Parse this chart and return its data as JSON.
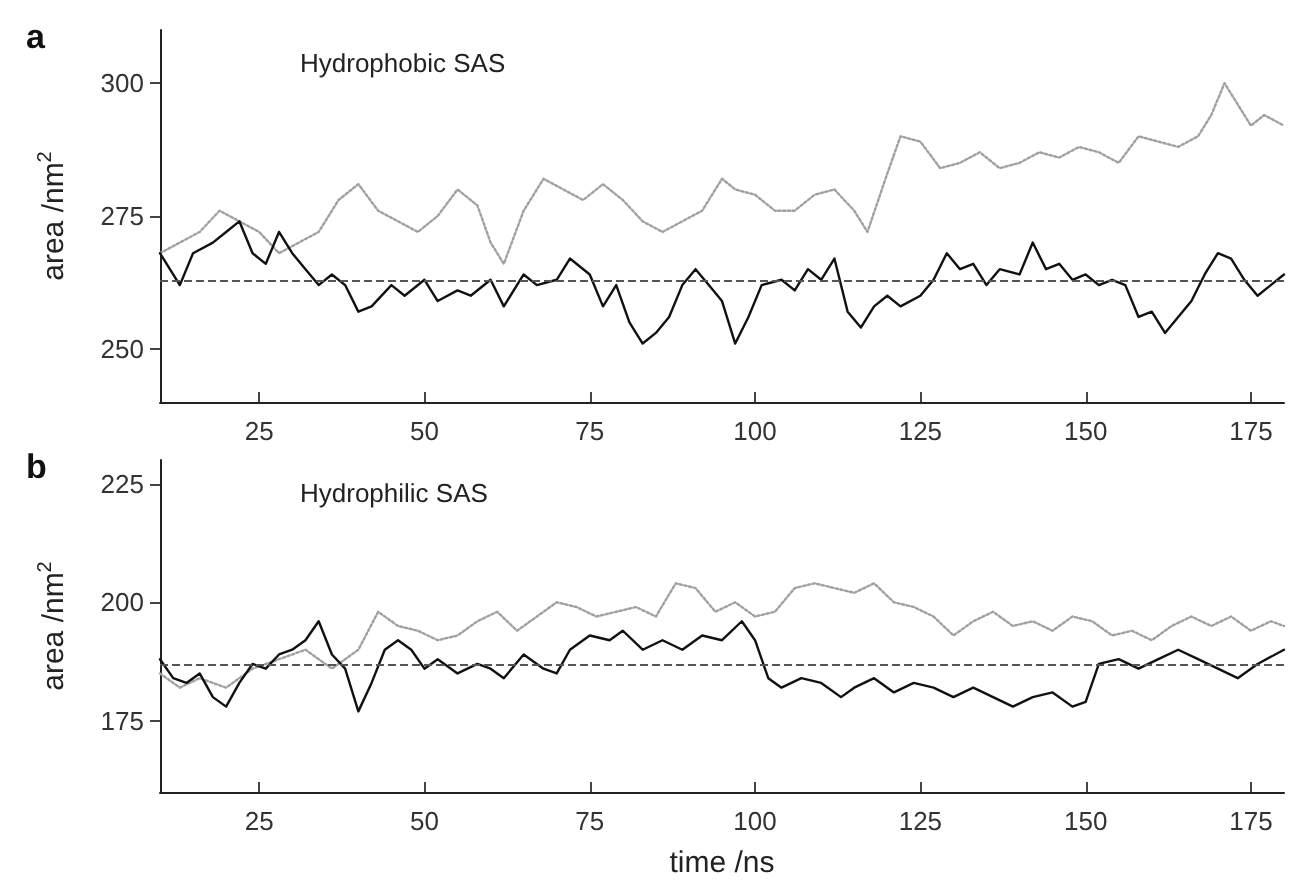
{
  "chart_data": [
    {
      "type": "line",
      "title": "a",
      "ylabel": "area /nm$^{2}$",
      "annotations": [
        "Hydrophobic SAS"
      ],
      "xlim": [
        10,
        180
      ],
      "ylim": [
        240,
        310
      ],
      "xticks": [
        25,
        50,
        75,
        100,
        125,
        150,
        175
      ],
      "yticks": [
        250,
        275,
        300
      ],
      "grid": false,
      "marker": "none",
      "ref_lines": [
        {
          "axis": "y",
          "value": 263,
          "color": "#555555",
          "line_style": "dashed"
        }
      ],
      "series": [
        {
          "color": "#a0a0a0",
          "line_style": "dotted",
          "x": [
            10,
            13,
            16,
            19,
            22,
            25,
            28,
            31,
            34,
            37,
            40,
            43,
            46,
            49,
            52,
            55,
            58,
            60,
            62,
            65,
            68,
            71,
            74,
            77,
            80,
            83,
            86,
            89,
            92,
            95,
            97,
            100,
            103,
            106,
            109,
            112,
            115,
            117,
            120,
            122,
            125,
            128,
            131,
            134,
            137,
            140,
            143,
            146,
            149,
            152,
            155,
            158,
            161,
            164,
            167,
            169,
            171,
            173,
            175,
            177,
            180
          ],
          "values": [
            268,
            270,
            272,
            276,
            274,
            272,
            268,
            270,
            272,
            278,
            281,
            276,
            274,
            272,
            275,
            280,
            277,
            270,
            266,
            276,
            282,
            280,
            278,
            281,
            278,
            274,
            272,
            274,
            276,
            282,
            280,
            279,
            276,
            276,
            279,
            280,
            276,
            272,
            283,
            290,
            289,
            284,
            285,
            287,
            284,
            285,
            287,
            286,
            288,
            287,
            285,
            290,
            289,
            288,
            290,
            294,
            300,
            296,
            292,
            294,
            292
          ]
        },
        {
          "color": "#111111",
          "line_style": "solid",
          "x": [
            10,
            13,
            15,
            18,
            20,
            22,
            24,
            26,
            28,
            30,
            32,
            34,
            36,
            38,
            40,
            42,
            45,
            47,
            50,
            52,
            55,
            57,
            60,
            62,
            65,
            67,
            70,
            72,
            75,
            77,
            79,
            81,
            83,
            85,
            87,
            89,
            91,
            93,
            95,
            97,
            99,
            101,
            104,
            106,
            108,
            110,
            112,
            114,
            116,
            118,
            120,
            122,
            125,
            127,
            129,
            131,
            133,
            135,
            137,
            140,
            142,
            144,
            146,
            148,
            150,
            152,
            154,
            156,
            158,
            160,
            162,
            164,
            166,
            168,
            170,
            172,
            174,
            176,
            178,
            180
          ],
          "values": [
            268,
            262,
            268,
            270,
            272,
            274,
            268,
            266,
            272,
            268,
            265,
            262,
            264,
            262,
            257,
            258,
            262,
            260,
            263,
            259,
            261,
            260,
            263,
            258,
            264,
            262,
            263,
            267,
            264,
            258,
            262,
            255,
            251,
            253,
            256,
            262,
            265,
            262,
            259,
            251,
            256,
            262,
            263,
            261,
            265,
            263,
            267,
            257,
            254,
            258,
            260,
            258,
            260,
            263,
            268,
            265,
            266,
            262,
            265,
            264,
            270,
            265,
            266,
            263,
            264,
            262,
            263,
            262,
            256,
            257,
            253,
            256,
            259,
            264,
            268,
            267,
            263,
            260,
            262,
            264
          ]
        }
      ]
    },
    {
      "type": "line",
      "title": "b",
      "ylabel": "area /nm$^{2}$",
      "xlabel": "time /ns",
      "annotations": [
        "Hydrophilic SAS"
      ],
      "xlim": [
        10,
        180
      ],
      "ylim": [
        160,
        230
      ],
      "xticks": [
        25,
        50,
        75,
        100,
        125,
        150,
        175
      ],
      "yticks": [
        175,
        200,
        225
      ],
      "grid": false,
      "marker": "none",
      "ref_lines": [
        {
          "axis": "y",
          "value": 187,
          "color": "#555555",
          "line_style": "dashed"
        }
      ],
      "series": [
        {
          "color": "#a0a0a0",
          "line_style": "dotted",
          "x": [
            10,
            13,
            16,
            20,
            24,
            28,
            32,
            36,
            40,
            43,
            46,
            49,
            52,
            55,
            58,
            61,
            64,
            67,
            70,
            73,
            76,
            79,
            82,
            85,
            88,
            91,
            94,
            97,
            100,
            103,
            106,
            109,
            112,
            115,
            118,
            121,
            124,
            127,
            130,
            133,
            136,
            139,
            142,
            145,
            148,
            151,
            154,
            157,
            160,
            163,
            166,
            169,
            172,
            175,
            178,
            180
          ],
          "values": [
            185,
            182,
            184,
            182,
            186,
            188,
            190,
            186,
            190,
            198,
            195,
            194,
            192,
            193,
            196,
            198,
            194,
            197,
            200,
            199,
            197,
            198,
            199,
            197,
            204,
            203,
            198,
            200,
            197,
            198,
            203,
            204,
            203,
            202,
            204,
            200,
            199,
            197,
            193,
            196,
            198,
            195,
            196,
            194,
            197,
            196,
            193,
            194,
            192,
            195,
            197,
            195,
            197,
            194,
            196,
            195
          ]
        },
        {
          "color": "#111111",
          "line_style": "solid",
          "x": [
            10,
            12,
            14,
            16,
            18,
            20,
            22,
            24,
            26,
            28,
            30,
            32,
            34,
            36,
            38,
            40,
            42,
            44,
            46,
            48,
            50,
            52,
            55,
            58,
            60,
            62,
            65,
            68,
            70,
            72,
            75,
            78,
            80,
            83,
            86,
            89,
            92,
            95,
            98,
            100,
            102,
            104,
            107,
            110,
            113,
            115,
            118,
            121,
            124,
            127,
            130,
            133,
            136,
            139,
            142,
            145,
            148,
            150,
            152,
            155,
            158,
            161,
            164,
            167,
            170,
            173,
            176,
            180
          ],
          "values": [
            188,
            184,
            183,
            185,
            180,
            178,
            183,
            187,
            186,
            189,
            190,
            192,
            196,
            189,
            186,
            177,
            183,
            190,
            192,
            190,
            186,
            188,
            185,
            187,
            186,
            184,
            189,
            186,
            185,
            190,
            193,
            192,
            194,
            190,
            192,
            190,
            193,
            192,
            196,
            192,
            184,
            182,
            184,
            183,
            180,
            182,
            184,
            181,
            183,
            182,
            180,
            182,
            180,
            178,
            180,
            181,
            178,
            179,
            187,
            188,
            186,
            188,
            190,
            188,
            186,
            184,
            187,
            190
          ]
        }
      ]
    }
  ]
}
